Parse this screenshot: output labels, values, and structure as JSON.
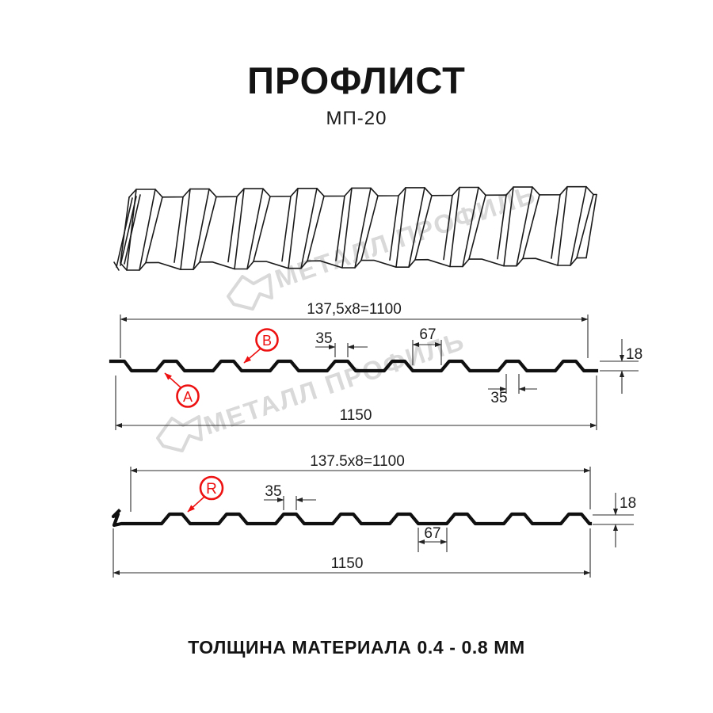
{
  "header": {
    "title": "ПРОФЛИСТ",
    "subtitle": "МП-20"
  },
  "footer": {
    "text": "ТОЛЩИНА МАТЕРИАЛА 0.4 - 0.8 ММ"
  },
  "watermark": {
    "text": "МЕТАЛЛ ПРОФИЛЬ",
    "color": "#d9d9d9"
  },
  "colors": {
    "accent_red": "#ed1111",
    "line": "#1a1a1a",
    "dim": "#2b2b2b"
  },
  "diagram1": {
    "width_working": "137,5x8=1100",
    "width_total": "1150",
    "dim35_top": "35",
    "dim67": "67",
    "dim18": "18",
    "dim35_bottom": "35",
    "label_a": "A",
    "label_b": "B"
  },
  "diagram2": {
    "width_working": "137.5x8=1100",
    "width_total": "1150",
    "dim35": "35",
    "dim67": "67",
    "dim18": "18",
    "label_r": "R"
  }
}
